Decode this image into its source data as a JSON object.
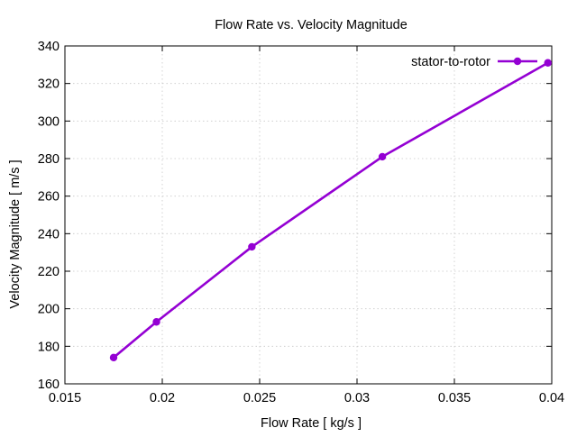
{
  "chart_data": {
    "type": "line",
    "title": "Flow Rate vs. Velocity Magnitude",
    "xlabel": "Flow Rate [ kg/s ]",
    "ylabel": "Velocity Magnitude [ m/s ]",
    "xlim": [
      0.015,
      0.04
    ],
    "ylim": [
      160,
      340
    ],
    "xticks": [
      0.015,
      0.02,
      0.025,
      0.03,
      0.035,
      0.04
    ],
    "xtick_labels": [
      "0.015",
      "0.02",
      "0.025",
      "0.03",
      "0.035",
      "0.04"
    ],
    "yticks": [
      160,
      180,
      200,
      220,
      240,
      260,
      280,
      300,
      320,
      340
    ],
    "ytick_labels": [
      "160",
      "180",
      "200",
      "220",
      "240",
      "260",
      "280",
      "300",
      "320",
      "340"
    ],
    "grid": true,
    "legend_position": "top-right",
    "series": [
      {
        "name": "stator-to-rotor",
        "color": "#9400d3",
        "marker": "circle",
        "x": [
          0.0175,
          0.0197,
          0.0246,
          0.0313,
          0.0398
        ],
        "y": [
          174,
          193,
          233,
          281,
          331
        ]
      }
    ]
  }
}
